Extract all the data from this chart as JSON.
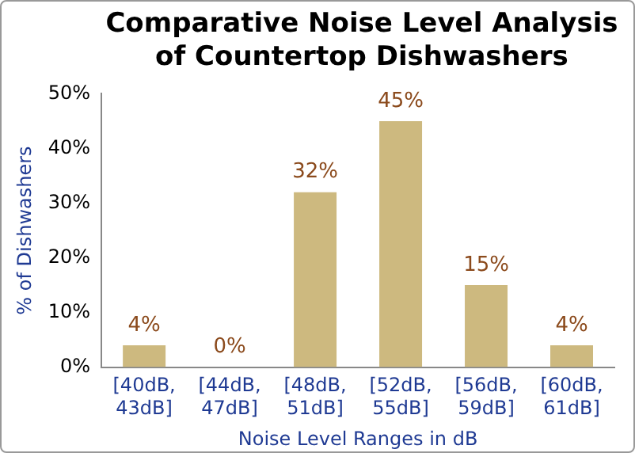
{
  "chart_data": {
    "type": "bar",
    "title": "Comparative Noise Level Analysis of Countertop Dishwashers",
    "xlabel": "Noise Level Ranges in dB",
    "ylabel": "% of Dishwashers",
    "categories": [
      "[40dB, 43dB]",
      "[44dB, 47dB]",
      "[48dB, 51dB]",
      "[52dB, 55dB]",
      "[56dB, 59dB]",
      "[60dB, 61dB]"
    ],
    "values": [
      4,
      0,
      32,
      45,
      15,
      4
    ],
    "value_labels": [
      "4%",
      "0%",
      "32%",
      "45%",
      "15%",
      "4%"
    ],
    "color": "#cdb97f",
    "ylim": [
      0,
      50
    ],
    "yticks": [
      {
        "value": 0,
        "label": "0%"
      },
      {
        "value": 10,
        "label": "10%"
      },
      {
        "value": 20,
        "label": "20%"
      },
      {
        "value": 30,
        "label": "30%"
      },
      {
        "value": 40,
        "label": "40%"
      },
      {
        "value": 50,
        "label": "50%"
      }
    ],
    "grid": false,
    "legend": false
  }
}
